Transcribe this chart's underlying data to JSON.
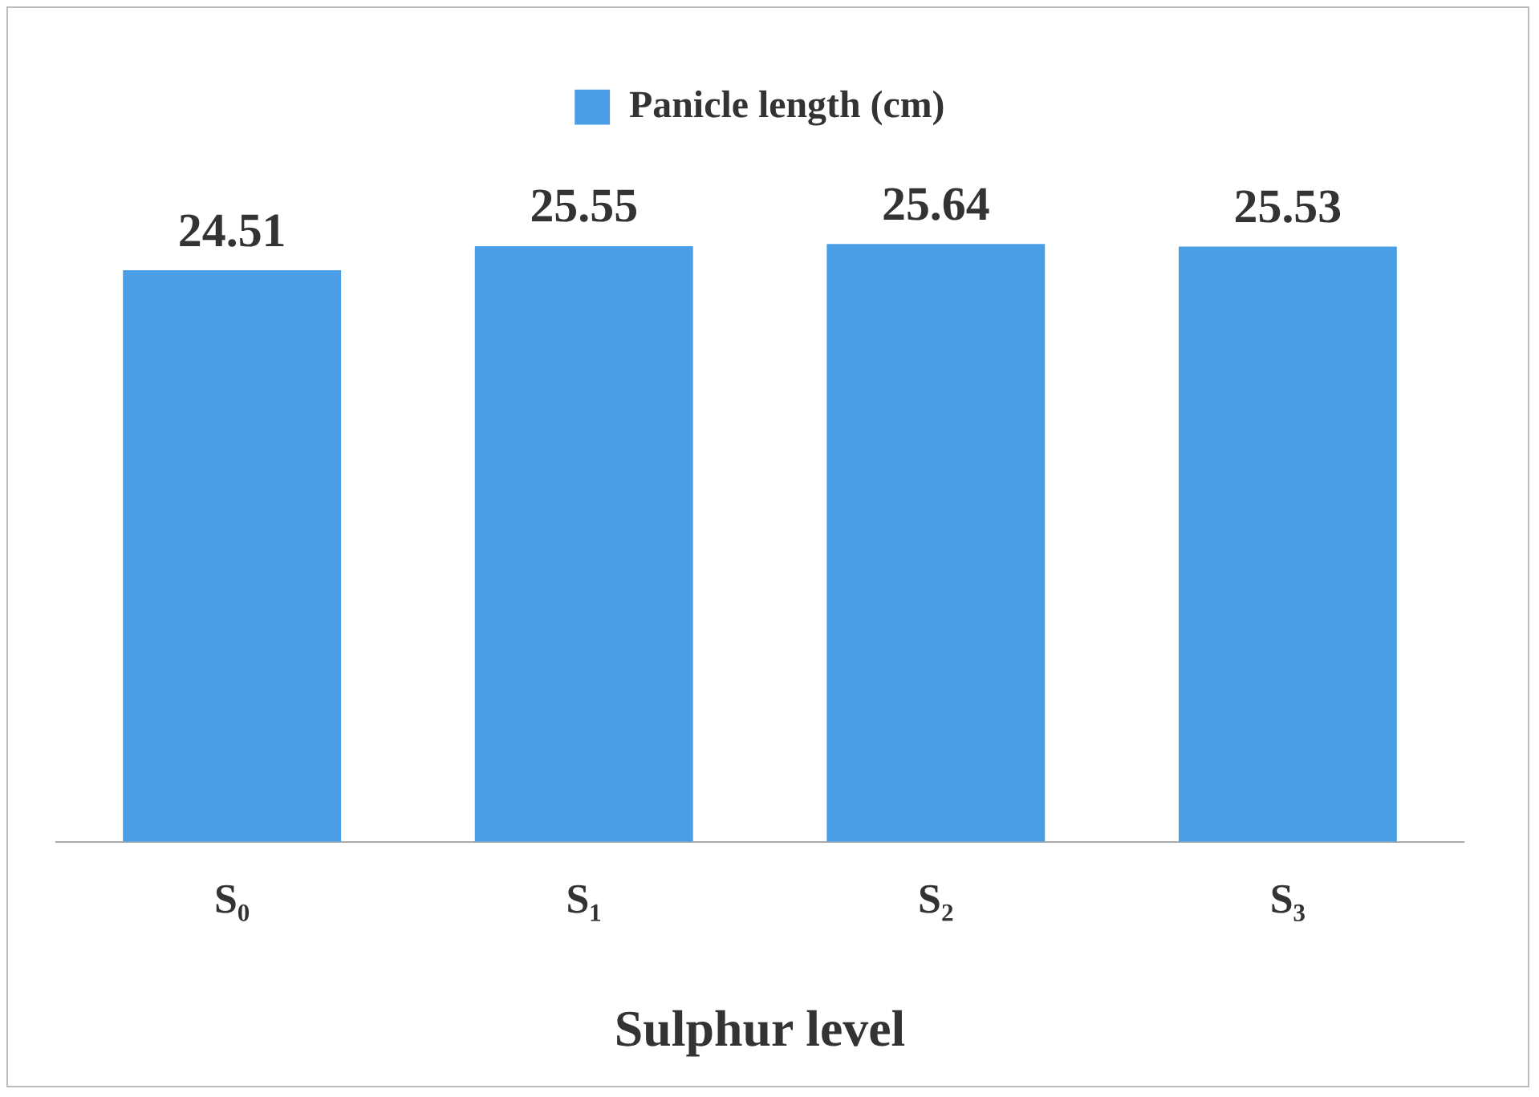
{
  "chart_data": {
    "type": "bar",
    "xlabel": "Sulphur level",
    "categories": [
      "S₀",
      "S₁",
      "S₂",
      "S₃"
    ],
    "series": [
      {
        "name": "Panicle length (cm)",
        "color": "#4a9ee6",
        "values": [
          24.51,
          25.55,
          25.64,
          25.53
        ]
      }
    ],
    "tick_labels": "x",
    "grid": false,
    "legend": "top",
    "data_labels": true
  }
}
